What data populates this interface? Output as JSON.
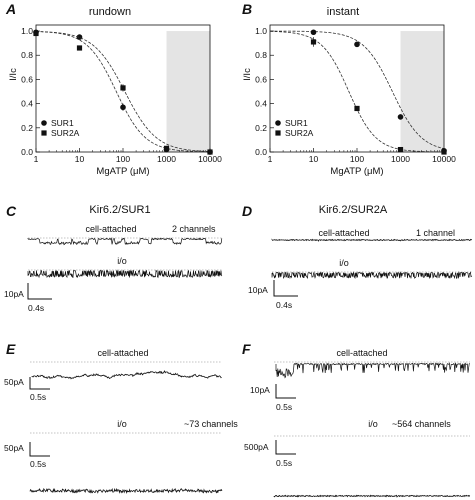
{
  "panels": [
    {
      "id": "A",
      "letter": "A",
      "title": "rundown"
    },
    {
      "id": "B",
      "letter": "B",
      "title": "instant"
    },
    {
      "id": "C",
      "letter": "C",
      "title": "Kir6.2/SUR1",
      "traces": [
        {
          "label": "cell-attached",
          "note": "2 channels"
        },
        {
          "label": "i/o",
          "note": ""
        }
      ],
      "scale": {
        "y": "10pA",
        "x": "0.4s"
      }
    },
    {
      "id": "D",
      "letter": "D",
      "title": "Kir6.2/SUR2A",
      "traces": [
        {
          "label": "cell-attached",
          "note": "1 channel"
        },
        {
          "label": "i/o",
          "note": ""
        }
      ],
      "scale": {
        "y": "10pA",
        "x": "0.4s"
      }
    },
    {
      "id": "E",
      "letter": "E",
      "title": "",
      "traces": [
        {
          "label": "cell-attached",
          "note": "",
          "scale": {
            "y": "50pA",
            "x": "0.5s"
          }
        },
        {
          "label": "i/o",
          "note": "~73 channels",
          "scale": {
            "y": "50pA",
            "x": "0.5s"
          }
        }
      ]
    },
    {
      "id": "F",
      "letter": "F",
      "title": "",
      "traces": [
        {
          "label": "cell-attached",
          "note": "",
          "scale": {
            "y": "10pA",
            "x": "0.5s"
          }
        },
        {
          "label": "i/o",
          "note": "~564 channels",
          "scale": {
            "y": "500pA",
            "x": "0.5s"
          }
        }
      ]
    }
  ],
  "chart_data": [
    {
      "type": "scatter",
      "panel": "A",
      "title": "rundown",
      "xlabel": "MgATP (μM)",
      "ylabel": "I/Ic",
      "xscale": "log",
      "xlim": [
        1,
        10000
      ],
      "ylim": [
        0,
        1.05
      ],
      "xticks": [
        "1",
        "10",
        "100",
        "1000",
        "10000"
      ],
      "yticks": [
        "0.0",
        "0.2",
        "0.4",
        "0.6",
        "0.8",
        "1.0"
      ],
      "shaded_region": [
        1000,
        10000
      ],
      "shade_color": "#e4e4e4",
      "legend_position": "bottom-left",
      "series": [
        {
          "name": "SUR1",
          "marker": "circle",
          "x": [
            1,
            10,
            100,
            1000,
            10000
          ],
          "y": [
            0.99,
            0.95,
            0.37,
            0.02,
            0.0
          ],
          "err": [
            0.01,
            0.02,
            0.03,
            0.01,
            0.0
          ],
          "fit": {
            "ic50": 70,
            "hill": 1.3
          }
        },
        {
          "name": "SUR2A",
          "marker": "square",
          "x": [
            1,
            10,
            100,
            1000,
            10000
          ],
          "y": [
            0.98,
            0.86,
            0.53,
            0.03,
            0.0
          ],
          "err": [
            0.01,
            0.02,
            0.03,
            0.01,
            0.0
          ],
          "fit": {
            "ic50": 110,
            "hill": 1.2
          }
        }
      ]
    },
    {
      "type": "scatter",
      "panel": "B",
      "title": "instant",
      "xlabel": "MgATP (μM)",
      "ylabel": "I/Ic",
      "xscale": "log",
      "xlim": [
        1,
        10000
      ],
      "ylim": [
        0,
        1.05
      ],
      "xticks": [
        "1",
        "10",
        "100",
        "1000",
        "10000"
      ],
      "yticks": [
        "0.0",
        "0.2",
        "0.4",
        "0.6",
        "0.8",
        "1.0"
      ],
      "shaded_region": [
        1000,
        10000
      ],
      "shade_color": "#e4e4e4",
      "legend_position": "bottom-left",
      "series": [
        {
          "name": "SUR1",
          "marker": "circle",
          "x": [
            10,
            100,
            1000,
            10000
          ],
          "y": [
            0.99,
            0.89,
            0.29,
            0.01
          ],
          "err": [
            0.01,
            0.02,
            0.02,
            0.0
          ],
          "fit": {
            "ic50": 650,
            "hill": 1.3
          }
        },
        {
          "name": "SUR2A",
          "marker": "square",
          "x": [
            10,
            100,
            1000,
            10000
          ],
          "y": [
            0.91,
            0.36,
            0.02,
            0.0
          ],
          "err": [
            0.04,
            0.02,
            0.01,
            0.0
          ],
          "fit": {
            "ic50": 65,
            "hill": 1.4
          }
        }
      ]
    }
  ]
}
